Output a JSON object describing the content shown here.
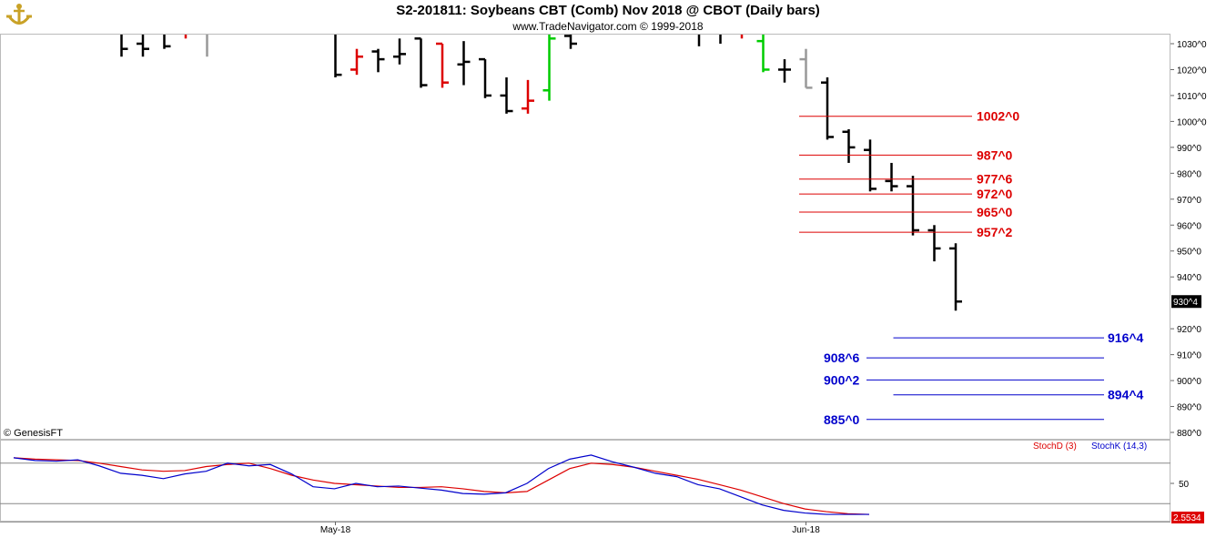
{
  "header": {
    "title": "S2-201811:  Soybeans CBT (Comb) Nov 2018 @ CBOT  (Daily bars)",
    "subtitle": "www.TradeNavigator.com © 1999-2018",
    "copyright": "© GenesisFT"
  },
  "colors": {
    "up_bar": "#00cc00",
    "down_bar": "#dd0000",
    "neutral_bar": "#000000",
    "gray_bar": "#999999",
    "resistance": "#dd0000",
    "support": "#0000cc",
    "stoch_d": "#dd0000",
    "stoch_k": "#0000cc",
    "last_price_bg": "#000000",
    "stoch_last_bg": "#dd0000"
  },
  "chart_data": [
    {
      "type": "ohlc",
      "title": "S2-201811:  Soybeans CBT (Comb) Nov 2018 @ CBOT  (Daily bars)",
      "ylim": [
        876,
        1036
      ],
      "y_ticks": [
        {
          "value": 1030,
          "label": "1030^0"
        },
        {
          "value": 1020,
          "label": "1020^0"
        },
        {
          "value": 1010,
          "label": "1010^0"
        },
        {
          "value": 1000,
          "label": "1000^0"
        },
        {
          "value": 990,
          "label": "990^0"
        },
        {
          "value": 980,
          "label": "980^0"
        },
        {
          "value": 970,
          "label": "970^0"
        },
        {
          "value": 960,
          "label": "960^0"
        },
        {
          "value": 950,
          "label": "950^0"
        },
        {
          "value": 940,
          "label": "940^0"
        },
        {
          "value": 920,
          "label": "920^0"
        },
        {
          "value": 910,
          "label": "910^0"
        },
        {
          "value": 900,
          "label": "900^0"
        },
        {
          "value": 890,
          "label": "890^0"
        },
        {
          "value": 880,
          "label": "880^0"
        }
      ],
      "x_ticks": [
        {
          "index": 11,
          "label": "May-18"
        },
        {
          "index": 33,
          "label": "Jun-18"
        }
      ],
      "bars": [
        {
          "i": 0,
          "o": 1040,
          "h": 1040,
          "l": 1035,
          "c": 1036,
          "color": "neutral"
        },
        {
          "i": 1,
          "o": 1035,
          "h": 1036,
          "l": 1025,
          "c": 1028,
          "color": "neutral"
        },
        {
          "i": 2,
          "o": 1030,
          "h": 1036,
          "l": 1025,
          "c": 1028,
          "color": "neutral"
        },
        {
          "i": 3,
          "o": 1034,
          "h": 1036,
          "l": 1028,
          "c": 1029,
          "color": "neutral"
        },
        {
          "i": 4,
          "o": 1035,
          "h": 1037,
          "l": 1032,
          "c": 1035,
          "color": "down"
        },
        {
          "i": 5,
          "o": 1034,
          "h": 1036,
          "l": 1025,
          "c": 1034,
          "color": "gray"
        },
        {
          "i": 9,
          "o": 1035,
          "h": 1036,
          "l": 1034,
          "c": 1035,
          "color": "neutral"
        },
        {
          "i": 11,
          "o": 1035,
          "h": 1036,
          "l": 1017,
          "c": 1018,
          "color": "neutral"
        },
        {
          "i": 12,
          "o": 1020,
          "h": 1028,
          "l": 1018,
          "c": 1025,
          "color": "down"
        },
        {
          "i": 13,
          "o": 1027,
          "h": 1028,
          "l": 1019,
          "c": 1024,
          "color": "neutral"
        },
        {
          "i": 14,
          "o": 1025,
          "h": 1032,
          "l": 1022,
          "c": 1026,
          "color": "neutral"
        },
        {
          "i": 15,
          "o": 1032,
          "h": 1032,
          "l": 1013,
          "c": 1014,
          "color": "neutral"
        },
        {
          "i": 16,
          "o": 1030,
          "h": 1030,
          "l": 1013,
          "c": 1015,
          "color": "down"
        },
        {
          "i": 17,
          "o": 1022,
          "h": 1031,
          "l": 1014,
          "c": 1023,
          "color": "neutral"
        },
        {
          "i": 18,
          "o": 1024,
          "h": 1024,
          "l": 1009,
          "c": 1010,
          "color": "neutral"
        },
        {
          "i": 19,
          "o": 1010,
          "h": 1017,
          "l": 1003,
          "c": 1004,
          "color": "neutral"
        },
        {
          "i": 20,
          "o": 1005,
          "h": 1016,
          "l": 1003,
          "c": 1008,
          "color": "down"
        },
        {
          "i": 21,
          "o": 1012,
          "h": 1035,
          "l": 1008,
          "c": 1032,
          "color": "up"
        },
        {
          "i": 22,
          "o": 1033,
          "h": 1036,
          "l": 1028,
          "c": 1030,
          "color": "neutral"
        },
        {
          "i": 28,
          "o": 1034,
          "h": 1036,
          "l": 1029,
          "c": 1035,
          "color": "neutral"
        },
        {
          "i": 29,
          "o": 1035,
          "h": 1036,
          "l": 1030,
          "c": 1035,
          "color": "neutral"
        },
        {
          "i": 30,
          "o": 1035,
          "h": 1036,
          "l": 1032,
          "c": 1035,
          "color": "down"
        },
        {
          "i": 31,
          "o": 1031,
          "h": 1036,
          "l": 1019,
          "c": 1020,
          "color": "up"
        },
        {
          "i": 32,
          "o": 1020,
          "h": 1024,
          "l": 1015,
          "c": 1020,
          "color": "neutral"
        },
        {
          "i": 33,
          "o": 1024,
          "h": 1028,
          "l": 1013,
          "c": 1013,
          "color": "gray"
        },
        {
          "i": 34,
          "o": 1015,
          "h": 1017,
          "l": 993,
          "c": 994,
          "color": "neutral"
        },
        {
          "i": 35,
          "o": 996,
          "h": 997,
          "l": 984,
          "c": 990,
          "color": "neutral"
        },
        {
          "i": 36,
          "o": 989,
          "h": 993,
          "l": 973,
          "c": 974,
          "color": "neutral"
        },
        {
          "i": 37,
          "o": 977,
          "h": 984,
          "l": 973,
          "c": 975,
          "color": "neutral"
        },
        {
          "i": 38,
          "o": 975,
          "h": 979,
          "l": 956,
          "c": 958,
          "color": "neutral"
        },
        {
          "i": 39,
          "o": 958,
          "h": 960,
          "l": 946,
          "c": 951,
          "color": "neutral"
        },
        {
          "i": 40,
          "o": 951,
          "h": 953,
          "l": 927,
          "c": 930.5,
          "color": "neutral"
        }
      ],
      "resistance_levels": [
        {
          "value": 1002,
          "label": "1002^0"
        },
        {
          "value": 987,
          "label": "987^0"
        },
        {
          "value": 977.75,
          "label": "977^6"
        },
        {
          "value": 972,
          "label": "972^0"
        },
        {
          "value": 965,
          "label": "965^0"
        },
        {
          "value": 957.25,
          "label": "957^2"
        }
      ],
      "support_levels": [
        {
          "value": 916.5,
          "label": "916^4",
          "side": "right",
          "start_index": 37
        },
        {
          "value": 908.75,
          "label": "908^6",
          "side": "left",
          "start_index": 36
        },
        {
          "value": 900.25,
          "label": "900^2",
          "side": "left",
          "start_index": 36
        },
        {
          "value": 894.5,
          "label": "894^4",
          "side": "right",
          "start_index": 37
        },
        {
          "value": 885,
          "label": "885^0",
          "side": "left",
          "start_index": 36
        }
      ],
      "last_price": {
        "value": 930.5,
        "label": "930^4"
      }
    },
    {
      "type": "line",
      "ylim": [
        0,
        100
      ],
      "y_ticks": [
        {
          "value": 50,
          "label": "50"
        }
      ],
      "upper_line": 80,
      "lower_line": 20,
      "legend": "top-right",
      "series": [
        {
          "name": "StochD (3)",
          "color_key": "stoch_d",
          "values": [
            88,
            86,
            85,
            84,
            80,
            75,
            70,
            68,
            69,
            75,
            78,
            80,
            72,
            62,
            55,
            50,
            48,
            46,
            44,
            44,
            45,
            42,
            38,
            36,
            38,
            55,
            72,
            80,
            78,
            74,
            68,
            62,
            56,
            48,
            40,
            30,
            20,
            12,
            8,
            5,
            4
          ]
        },
        {
          "name": "StochK (14,3)",
          "color_key": "stoch_k",
          "values": [
            88,
            84,
            83,
            85,
            76,
            65,
            62,
            57,
            64,
            68,
            80,
            76,
            78,
            64,
            45,
            42,
            50,
            45,
            46,
            43,
            40,
            35,
            34,
            36,
            50,
            72,
            86,
            92,
            82,
            74,
            65,
            60,
            48,
            42,
            30,
            18,
            10,
            6,
            4,
            4,
            4
          ]
        }
      ],
      "last_value": {
        "label": "2.5534"
      }
    }
  ]
}
